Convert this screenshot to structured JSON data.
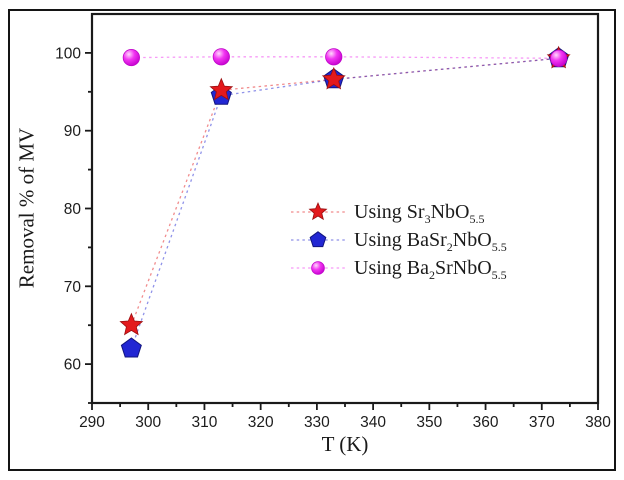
{
  "figure": {
    "background": "#ffffff",
    "border_color": "#141414",
    "axis_color": "#1a1a1a",
    "text_color": "#1c1c1c"
  },
  "chart_data": {
    "type": "scatter",
    "subtype": "markers-with-dashed-lines",
    "title": "",
    "xlabel": "T (K)",
    "ylabel": "Removal % of MV",
    "xlim": [
      290,
      380
    ],
    "ylim": [
      55,
      105
    ],
    "xticks": [
      290,
      300,
      310,
      320,
      330,
      340,
      350,
      360,
      370,
      380
    ],
    "yticks": [
      60,
      70,
      80,
      90,
      100
    ],
    "minor_tick_step_x": 5,
    "minor_tick_step_y": 5,
    "grid": false,
    "legend_position": "center-right",
    "line_style": "dashed",
    "x": [
      297,
      313,
      333,
      373
    ],
    "marker_draw_order": [
      1,
      0,
      2
    ],
    "series": [
      {
        "name": "Using Sr3NbO5.5",
        "legend": {
          "prefix": "Using Sr",
          "sub1": "3",
          "mid": "NbO",
          "sub2": "5.5"
        },
        "marker": "star",
        "color": "#e3191c",
        "edge_color": "#9b0e10",
        "line_opacity": 0.5,
        "size": 11.5,
        "values": [
          65,
          95.2,
          96.6,
          99.3
        ]
      },
      {
        "name": "Using BaSr2NbO5.5",
        "legend": {
          "prefix": "Using BaSr",
          "sub1": "2",
          "mid": "NbO",
          "sub2": "5.5"
        },
        "marker": "pentagon",
        "color": "#2227d3",
        "edge_color": "#12157f",
        "line_opacity": 0.5,
        "size": 10.5,
        "values": [
          62,
          94.5,
          96.6,
          99.3
        ]
      },
      {
        "name": "Using Ba2SrNbO5.5",
        "legend": {
          "prefix": "Using Ba",
          "sub1": "2",
          "mid": "SrNbO",
          "sub2": "5.5"
        },
        "marker": "circle",
        "color": "#ee1fee",
        "edge_color": "#bf06c9",
        "gradient": [
          "#ffd9fb",
          "#f235f2",
          "#c400cd"
        ],
        "line_opacity": 0.45,
        "size": 8.2,
        "values": [
          99.4,
          99.5,
          99.5,
          99.3
        ]
      }
    ]
  }
}
